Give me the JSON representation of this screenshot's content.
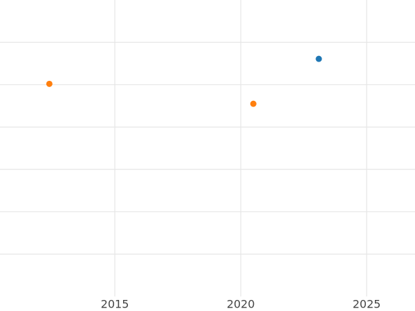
{
  "chart_data": {
    "type": "scatter",
    "series": [
      {
        "color": "#1f77b4",
        "x": [
          2023.1
        ],
        "values": [
          5.61
        ]
      },
      {
        "color": "#ff7f0e",
        "x": [
          2012.4,
          2020.5
        ],
        "values": [
          5.02,
          4.55
        ]
      }
    ],
    "xlim": [
      2010.44,
      2026.92
    ],
    "xticks": [
      2015,
      2020,
      2025
    ],
    "ylim": [
      0,
      7
    ],
    "yticks": [
      1,
      2,
      3,
      4,
      5,
      6
    ],
    "ytick_labels_shown": false,
    "grid": true
  }
}
